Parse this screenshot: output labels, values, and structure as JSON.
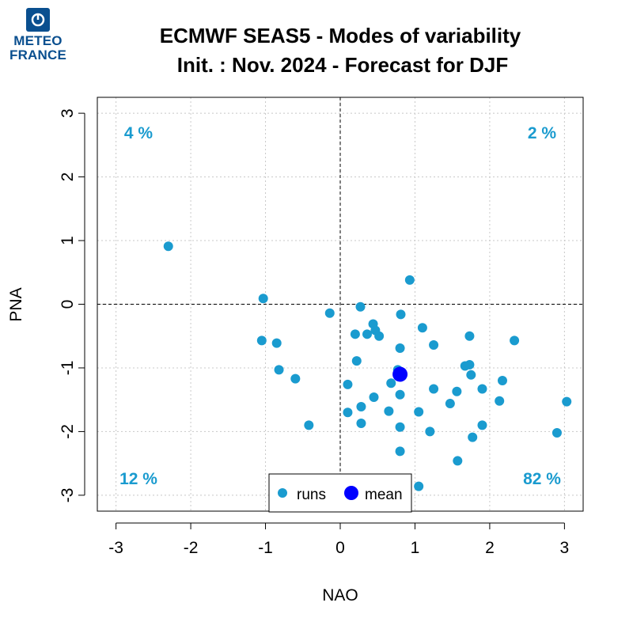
{
  "logo": {
    "line1": "METEO",
    "line2": "FRANCE"
  },
  "chart_data": {
    "type": "scatter",
    "title": "ECMWF SEAS5 - Modes of variability",
    "subtitle": "Init. : Nov. 2024 - Forecast for DJF",
    "xlabel": "NAO",
    "ylabel": "PNA",
    "xlim": [
      -3.25,
      3.25
    ],
    "ylim": [
      -3.25,
      3.25
    ],
    "x_ticks": [
      -3,
      -2,
      -1,
      0,
      1,
      2,
      3
    ],
    "y_ticks": [
      -3,
      -2,
      -1,
      0,
      1,
      2,
      3
    ],
    "grid": true,
    "colors": {
      "runs": "#1a9bcf",
      "mean": "#0000ff",
      "quadrant_text": "#1a9bcf",
      "axes": "#000000"
    },
    "quadrant_labels": [
      {
        "position": "top-left",
        "text": "4 %"
      },
      {
        "position": "top-right",
        "text": "2 %"
      },
      {
        "position": "bottom-left",
        "text": "12 %"
      },
      {
        "position": "bottom-right",
        "text": "82 %"
      }
    ],
    "legend": {
      "placement": "bottom-center",
      "entries": [
        "runs",
        "mean"
      ]
    },
    "series": [
      {
        "name": "runs",
        "points": [
          [
            -2.3,
            0.91
          ],
          [
            -1.03,
            0.09
          ],
          [
            -1.05,
            -0.57
          ],
          [
            -0.85,
            -0.61
          ],
          [
            -0.82,
            -1.03
          ],
          [
            -0.6,
            -1.17
          ],
          [
            -0.42,
            -1.9
          ],
          [
            -0.14,
            -0.14
          ],
          [
            0.27,
            -0.04
          ],
          [
            0.2,
            -0.47
          ],
          [
            0.36,
            -0.47
          ],
          [
            0.44,
            -0.31
          ],
          [
            0.47,
            -0.41
          ],
          [
            0.52,
            -0.5
          ],
          [
            0.81,
            -0.16
          ],
          [
            0.93,
            0.38
          ],
          [
            1.1,
            -0.37
          ],
          [
            1.25,
            -0.64
          ],
          [
            0.8,
            -0.69
          ],
          [
            0.22,
            -0.89
          ],
          [
            0.1,
            -1.26
          ],
          [
            0.45,
            -1.46
          ],
          [
            0.28,
            -1.61
          ],
          [
            0.1,
            -1.7
          ],
          [
            0.28,
            -1.87
          ],
          [
            0.68,
            -1.24
          ],
          [
            0.65,
            -1.68
          ],
          [
            0.77,
            -1.03
          ],
          [
            0.8,
            -1.42
          ],
          [
            0.8,
            -1.93
          ],
          [
            0.8,
            -2.31
          ],
          [
            1.05,
            -1.69
          ],
          [
            1.25,
            -1.33
          ],
          [
            1.2,
            -2.0
          ],
          [
            1.05,
            -2.86
          ],
          [
            1.47,
            -1.56
          ],
          [
            1.56,
            -1.37
          ],
          [
            1.67,
            -0.97
          ],
          [
            1.73,
            -0.95
          ],
          [
            1.73,
            -0.5
          ],
          [
            1.75,
            -1.11
          ],
          [
            1.9,
            -1.33
          ],
          [
            1.9,
            -1.9
          ],
          [
            1.77,
            -2.09
          ],
          [
            1.57,
            -2.46
          ],
          [
            2.13,
            -1.52
          ],
          [
            2.17,
            -1.2
          ],
          [
            2.33,
            -0.57
          ],
          [
            2.9,
            -2.02
          ],
          [
            3.03,
            -1.53
          ]
        ]
      },
      {
        "name": "mean",
        "points": [
          [
            0.8,
            -1.1
          ]
        ]
      }
    ]
  }
}
